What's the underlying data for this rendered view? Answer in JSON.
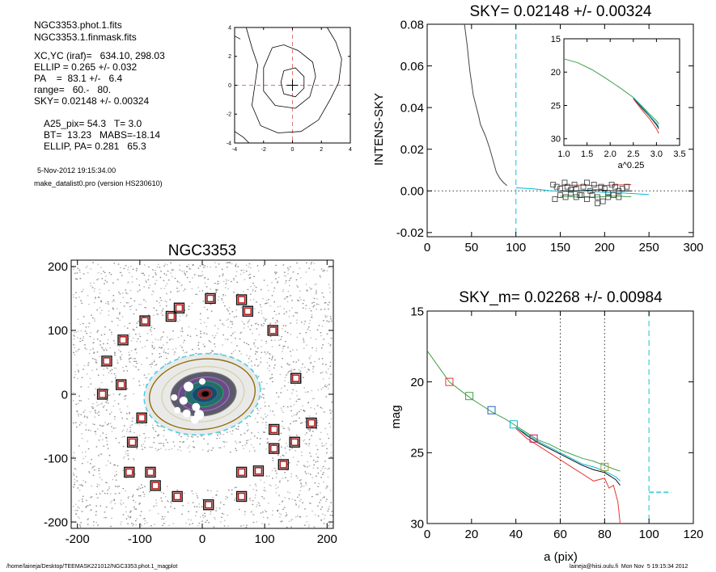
{
  "header_info": {
    "file_lines": [
      "NGC3353.phot.1.fits",
      "NGC3353.1.finmask.fits"
    ],
    "param_lines": [
      "XC,YC (iraf)=   634.10, 298.03",
      "ELLIP = 0.265 +/- 0.032",
      "PA    =  83.1 +/-   6.4",
      "range=   60.-   80.",
      "SKY= 0.02148 +/- 0.00324"
    ],
    "result_lines": [
      "A25_pix= 54.3   T= 3.0",
      "BT=  13.23   MABS=-18.14",
      "ELLIP, PA= 0.281   65.3"
    ],
    "date_line": "5-Nov-2012 19:15:34.00",
    "program_line": "make_datalist0.pro (version HS230610)"
  },
  "footer": {
    "left": "/home/laineja/Desktop/TEEMASK221012/NGC3353.phot.1_magplot",
    "right": "laineja@hiisi.oulu.fi  Mon Nov  5 19:15:34 2012"
  },
  "chart_data": [
    {
      "id": "centroid_contour",
      "type": "contour",
      "title": "",
      "xlabel": "",
      "ylabel": "",
      "xlim": [
        -4,
        4
      ],
      "ylim": [
        -4,
        4
      ],
      "xticks": [
        "-4",
        "-2",
        "0",
        "2",
        "4"
      ],
      "yticks": [
        "-4",
        "-2",
        "0",
        "2",
        "4"
      ],
      "center": [
        0,
        0
      ],
      "contours": [
        [
          [
            -3.2,
            4
          ],
          [
            -2.8,
            2.6
          ],
          [
            -2.4,
            1.4
          ],
          [
            -2.6,
            0
          ],
          [
            -2.8,
            -1.4
          ],
          [
            -2.2,
            -2.8
          ],
          [
            -1,
            -3.3
          ],
          [
            0.6,
            -3.2
          ],
          [
            1.8,
            -2.4
          ],
          [
            2.6,
            -1
          ],
          [
            3.2,
            0.2
          ],
          [
            3.4,
            1.8
          ],
          [
            3,
            3
          ],
          [
            2.4,
            4
          ]
        ],
        [
          [
            -1.4,
            2.6
          ],
          [
            -2,
            1.2
          ],
          [
            -2,
            -0.4
          ],
          [
            -1.2,
            -1.4
          ],
          [
            0.2,
            -1.6
          ],
          [
            1.2,
            -0.8
          ],
          [
            1.6,
            0.6
          ],
          [
            1.4,
            1.6
          ],
          [
            0.4,
            2.4
          ],
          [
            -0.6,
            2.8
          ],
          [
            -1.4,
            2.6
          ]
        ],
        [
          [
            -0.6,
            1
          ],
          [
            -0.8,
            0.2
          ],
          [
            -0.6,
            -0.6
          ],
          [
            0.2,
            -0.8
          ],
          [
            0.8,
            -0.2
          ],
          [
            0.8,
            0.6
          ],
          [
            0.2,
            1.2
          ],
          [
            -0.6,
            1
          ]
        ],
        [
          [
            -4,
            -3.2
          ],
          [
            -3.4,
            -3.6
          ],
          [
            -3,
            -4
          ]
        ],
        [
          [
            -4,
            3.4
          ],
          [
            -3.6,
            3.2
          ]
        ]
      ]
    },
    {
      "id": "sky_profile",
      "type": "line",
      "title": "SKY= 0.02148 +/- 0.00324",
      "xlabel": "",
      "ylabel": "INTENS-SKY",
      "xlim": [
        0,
        300
      ],
      "ylim": [
        -0.022,
        0.08
      ],
      "xticks": [
        "0",
        "50",
        "100",
        "150",
        "200",
        "250",
        "300"
      ],
      "yticks": [
        "-0.02",
        "0.00",
        "0.02",
        "0.04",
        "0.06",
        "0.08"
      ],
      "sky_level": 0.0,
      "vline_x": 100,
      "series": [
        {
          "color": "#444444",
          "x": [
            42,
            45,
            48,
            50,
            52,
            55,
            58,
            60,
            63,
            66,
            70,
            74,
            78,
            82,
            86,
            90
          ],
          "y": [
            0.08,
            0.07,
            0.058,
            0.052,
            0.046,
            0.041,
            0.036,
            0.032,
            0.029,
            0.026,
            0.021,
            0.015,
            0.009,
            0.006,
            0.004,
            0.0025
          ]
        },
        {
          "color": "#00bcd4",
          "x": [
            100,
            120,
            140,
            160,
            180,
            200,
            220,
            240,
            250
          ],
          "y": [
            0.0015,
            0.001,
            0.0,
            -0.0003,
            0.0,
            -0.0008,
            -0.001,
            -0.0015,
            -0.0018
          ]
        },
        {
          "color": "#111111",
          "x": [
            150,
            170,
            190,
            210,
            230
          ],
          "y": [
            0.0,
            0.0,
            0.0005,
            0.0,
            0.0
          ]
        },
        {
          "color": "#e53935",
          "x": [
            150,
            170,
            190,
            210,
            230
          ],
          "y": [
            0.0025,
            0.0028,
            0.0025,
            0.0028,
            0.003
          ]
        },
        {
          "color": "#43a047",
          "x": [
            150,
            170,
            190,
            210,
            230
          ],
          "y": [
            -0.0025,
            -0.003,
            -0.003,
            -0.0025,
            -0.0028
          ]
        }
      ],
      "markers": {
        "x": [
          142,
          146,
          150,
          155,
          158,
          162,
          166,
          168,
          172,
          176,
          180,
          184,
          188,
          192,
          196,
          200,
          204,
          208,
          212,
          216,
          220,
          225,
          144,
          150,
          156,
          162,
          168,
          174,
          180,
          186,
          192,
          198,
          204,
          210,
          216
        ],
        "y": [
          0.003,
          0.002,
          0.001,
          0.004,
          0.002,
          0.0005,
          0.003,
          0.001,
          -0.002,
          0.002,
          0.004,
          0.0,
          0.003,
          -0.003,
          0.002,
          0.001,
          -0.001,
          0.003,
          0.002,
          0.0,
          0.001,
          0.002,
          -0.004,
          -0.002,
          -0.003,
          -0.001,
          -0.003,
          -0.002,
          -0.004,
          -0.002,
          -0.006,
          -0.005,
          -0.003,
          -0.002,
          -0.003
        ]
      }
    },
    {
      "id": "sky_inset",
      "type": "line",
      "title": "",
      "xlabel": "a^0.25",
      "ylabel": "",
      "xlim": [
        1.0,
        3.5
      ],
      "ylim": [
        15,
        31
      ],
      "y_inverted": true,
      "xticks": [
        "1.0",
        "1.5",
        "2.0",
        "2.5",
        "3.0",
        "3.5"
      ],
      "yticks": [
        "15",
        "20",
        "25",
        "30"
      ],
      "series": [
        {
          "color": "#43a047",
          "x": [
            1.0,
            1.3,
            1.6,
            1.9,
            2.2,
            2.5,
            2.7,
            2.85,
            3.0,
            3.05
          ],
          "y": [
            18,
            18.6,
            19.6,
            20.9,
            22.3,
            23.8,
            25.2,
            26.3,
            27.3,
            27.8
          ]
        },
        {
          "color": "#111111",
          "x": [
            2.5,
            2.7,
            2.85,
            3.0,
            3.05
          ],
          "y": [
            23.9,
            25.5,
            26.6,
            27.9,
            28.5
          ]
        },
        {
          "color": "#e53935",
          "x": [
            2.5,
            2.7,
            2.85,
            3.0,
            3.05
          ],
          "y": [
            24.0,
            25.8,
            27.0,
            28.5,
            29.2
          ]
        },
        {
          "color": "#00bcd4",
          "x": [
            2.5,
            2.7,
            2.85,
            3.0,
            3.05
          ],
          "y": [
            23.8,
            25.3,
            26.5,
            27.7,
            28.2
          ]
        }
      ]
    },
    {
      "id": "galaxy_map",
      "type": "scatter",
      "title": "NGC3353",
      "xlabel": "",
      "ylabel": "",
      "xlim": [
        -210,
        210
      ],
      "ylim": [
        -210,
        210
      ],
      "xticks": [
        "-200",
        "-100",
        "0",
        "100",
        "200"
      ],
      "yticks": [
        "-200",
        "-100",
        "0",
        "100",
        "200"
      ],
      "ellipse": {
        "rx": 85,
        "ry": 55,
        "angle_deg": 7
      },
      "sky_boxes": {
        "x": [
          13,
          63,
          73,
          -50,
          -37,
          -92,
          -127,
          -153,
          -130,
          -160,
          -97,
          -112,
          -117,
          -83,
          -75,
          -40,
          10,
          63,
          63,
          90,
          115,
          115,
          130,
          148,
          175,
          150,
          113
        ],
        "y": [
          150,
          148,
          130,
          122,
          135,
          115,
          85,
          52,
          15,
          0,
          -37,
          -75,
          -122,
          -122,
          -143,
          -160,
          -173,
          -160,
          -122,
          -120,
          -85,
          -55,
          -110,
          -75,
          -45,
          25,
          100
        ]
      }
    },
    {
      "id": "mag_profile",
      "type": "line",
      "title": "SKY_m=  0.02268 +/- 0.00984",
      "xlabel": "a (pix)",
      "ylabel": "mag",
      "xlim": [
        0,
        120
      ],
      "ylim": [
        15,
        30
      ],
      "y_inverted": true,
      "xticks": [
        "0",
        "20",
        "40",
        "60",
        "80",
        "100",
        "120"
      ],
      "yticks": [
        "15",
        "20",
        "25",
        "30"
      ],
      "vlines_dotted": [
        60,
        80
      ],
      "vline_dashed": 100,
      "sky_mag_segment": {
        "x": [
          100,
          110
        ],
        "y": 27.8
      },
      "series": [
        {
          "color": "#43a047",
          "x": [
            0,
            5,
            10,
            15,
            20,
            25,
            30,
            35,
            40,
            45,
            50,
            55,
            60,
            65,
            70,
            75,
            80,
            85,
            87
          ],
          "y": [
            17.8,
            18.9,
            20.0,
            20.6,
            21.2,
            21.7,
            22.2,
            22.6,
            23.1,
            23.6,
            24.1,
            24.4,
            24.8,
            25.1,
            25.4,
            25.6,
            25.9,
            26.2,
            26.3
          ]
        },
        {
          "color": "#111111",
          "x": [
            40,
            45,
            50,
            55,
            60,
            65,
            70,
            75,
            80,
            85,
            87
          ],
          "y": [
            23.2,
            23.8,
            24.3,
            24.7,
            25.1,
            25.5,
            25.9,
            26.2,
            26.4,
            26.9,
            27.3
          ]
        },
        {
          "color": "#e53935",
          "x": [
            40,
            45,
            50,
            55,
            60,
            65,
            70,
            75,
            80,
            82,
            84,
            86,
            87
          ],
          "y": [
            23.3,
            24.0,
            24.5,
            25.0,
            25.5,
            26.0,
            26.5,
            27.0,
            26.8,
            27.5,
            27.3,
            28.5,
            30.0
          ]
        },
        {
          "color": "#00bcd4",
          "x": [
            40,
            45,
            50,
            55,
            60,
            65,
            70,
            75,
            80,
            85,
            87
          ],
          "y": [
            23.2,
            23.7,
            24.2,
            24.6,
            25.0,
            25.4,
            25.8,
            26.0,
            26.3,
            26.7,
            27.0
          ]
        }
      ],
      "markers": [
        {
          "x": 10,
          "y": 20.0,
          "color": "#e53935"
        },
        {
          "x": 19,
          "y": 21.0,
          "color": "#43a047"
        },
        {
          "x": 29,
          "y": 22.0,
          "color": "#1e63c6"
        },
        {
          "x": 39,
          "y": 23.0,
          "color": "#00bcd4"
        },
        {
          "x": 48,
          "y": 24.0,
          "color": "#c2185b"
        },
        {
          "x": 80,
          "y": 26.0,
          "color": "#a0a040"
        }
      ]
    }
  ]
}
